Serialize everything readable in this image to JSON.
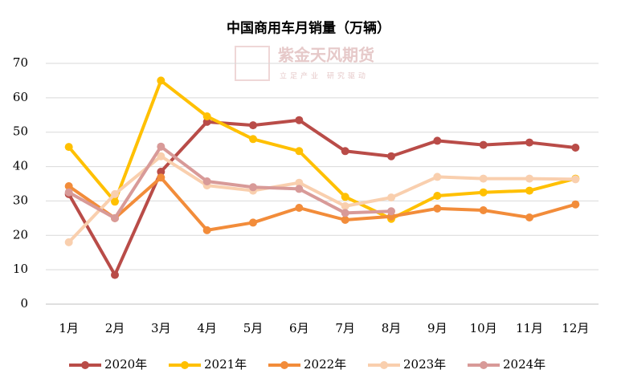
{
  "chart_data": {
    "type": "line",
    "title": "中国商用车月销量（万辆）",
    "watermark": {
      "brand": "紫金天风期货",
      "slogan": "立足产业 研究驱动"
    },
    "categories": [
      "1月",
      "2月",
      "3月",
      "4月",
      "5月",
      "6月",
      "7月",
      "8月",
      "9月",
      "10月",
      "11月",
      "12月"
    ],
    "series": [
      {
        "name": "2020年",
        "color": "#b94c48",
        "values": [
          32,
          8.5,
          38.5,
          53,
          52,
          53.5,
          44.5,
          43,
          47.5,
          46.3,
          47,
          45.5
        ]
      },
      {
        "name": "2021年",
        "color": "#ffc000",
        "values": [
          45.7,
          29.8,
          65,
          54.6,
          48,
          44.5,
          31.2,
          24.8,
          31.5,
          32.5,
          33,
          36.5
        ]
      },
      {
        "name": "2022年",
        "color": "#f28c3a",
        "values": [
          34.3,
          25,
          36.8,
          21.5,
          23.7,
          28,
          24.5,
          25.5,
          27.8,
          27.3,
          25.2,
          29
        ]
      },
      {
        "name": "2023年",
        "color": "#f9cfae",
        "values": [
          18,
          32,
          43,
          34.5,
          33,
          35.3,
          28.5,
          31,
          37,
          36.5,
          36.5,
          36.3
        ]
      },
      {
        "name": "2024年",
        "color": "#d89a98",
        "values": [
          32.5,
          25,
          45.8,
          35.7,
          34,
          33.5,
          26.5,
          27,
          null,
          null,
          null,
          null
        ]
      }
    ],
    "ylim": [
      0,
      70
    ],
    "yticks": [
      0,
      10,
      20,
      30,
      40,
      50,
      60,
      70
    ],
    "grid": true,
    "legend": "bottom"
  }
}
